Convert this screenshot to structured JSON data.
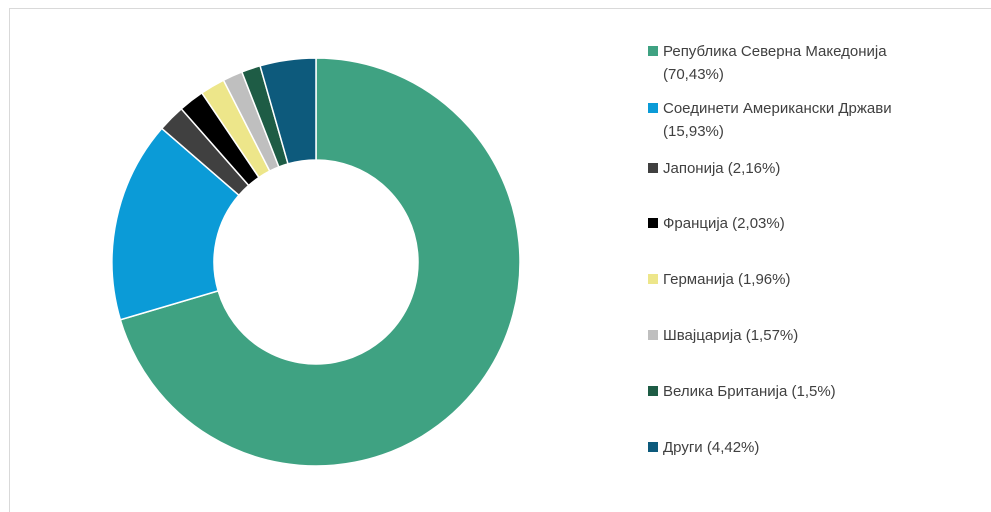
{
  "chart_data": {
    "type": "donut",
    "categories": [
      "Република Северна  Македонија (70,43%)",
      "Соединети Американски Држави (15,93%)",
      "Јапонија (2,16%)",
      "Франција (2,03%)",
      "Германија (1,96%)",
      "Швајцарија (1,57%)",
      "Велика Британија (1,5%)",
      "Други (4,42%)"
    ],
    "values": [
      70.43,
      15.93,
      2.16,
      2.03,
      1.96,
      1.57,
      1.5,
      4.42
    ],
    "colors": [
      "#3fa282",
      "#0b9bd7",
      "#404040",
      "#000000",
      "#ede68a",
      "#bfbfbf",
      "#1e5c45",
      "#0d5a7c"
    ],
    "legend": "right"
  }
}
